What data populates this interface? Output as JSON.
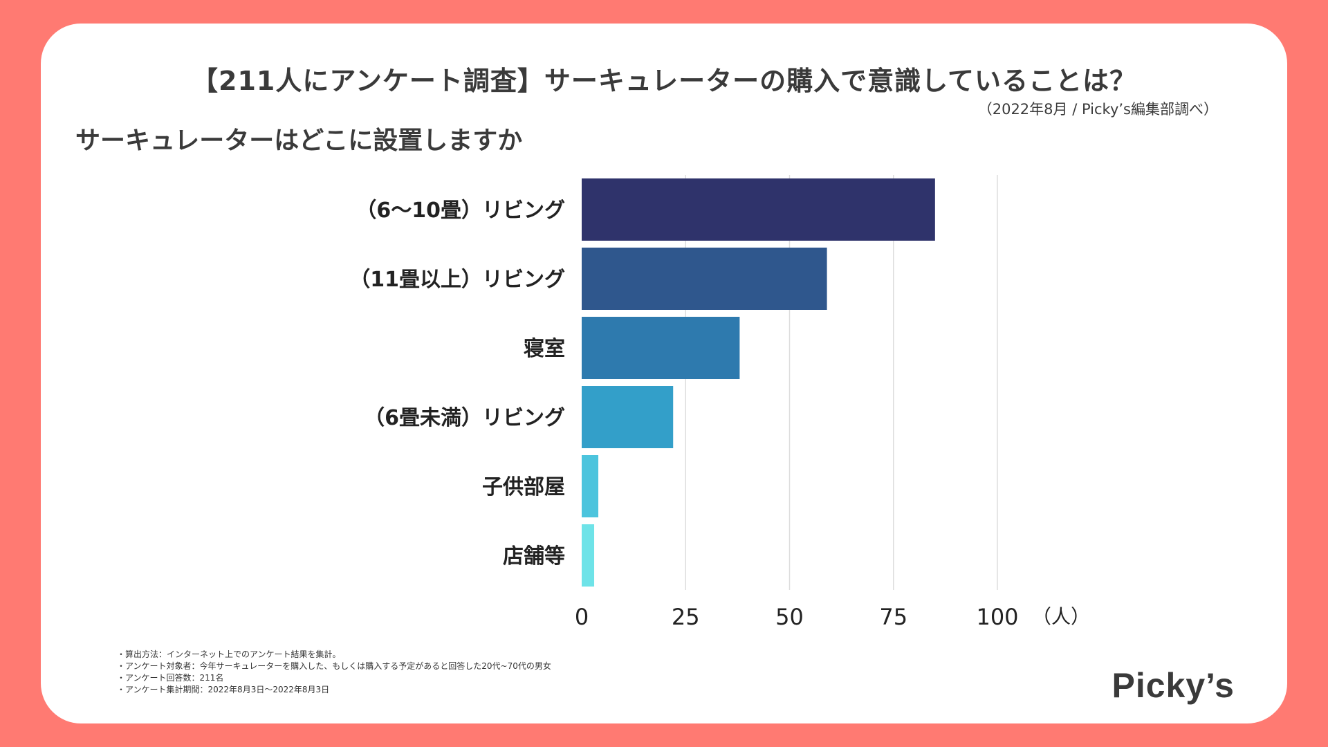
{
  "header": {
    "title": "【211人にアンケート調査】サーキュレーターの購入で意識していることは？",
    "source": "（2022年8月 / Picky’s編集部調べ）",
    "question": "サーキュレーターはどこに設置しますか"
  },
  "chart_data": {
    "type": "bar",
    "orientation": "horizontal",
    "categories": [
      "（6〜10畳）リビング",
      "（11畳以上）リビング",
      "寝室",
      "（6畳未満）リビング",
      "子供部屋",
      "店舗等"
    ],
    "values": [
      85,
      59,
      38,
      22,
      4,
      3
    ],
    "colors": [
      "#2f336b",
      "#2f578d",
      "#2e7aae",
      "#339fc9",
      "#4cc4dd",
      "#6ee3e8"
    ],
    "xticks": [
      0,
      25,
      50,
      75,
      100
    ],
    "xlim": [
      0,
      100
    ],
    "xlabel": "（人）",
    "grid": true
  },
  "notes": [
    "・算出方法：インターネット上でのアンケート結果を集計。",
    "・アンケート対象者：今年サーキュレーターを購入した、もしくは購入する予定があると回答した20代~70代の男女",
    "・アンケート回答数：211名",
    "・アンケート集計期間：2022年8月3日〜2022年8月3日"
  ],
  "logo": {
    "text": "Picky’s"
  }
}
